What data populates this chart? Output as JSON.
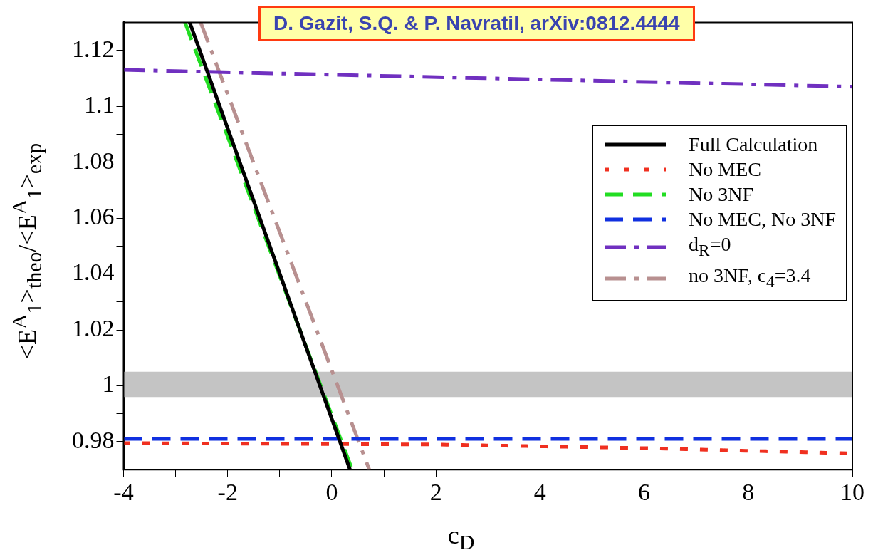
{
  "chart_data": {
    "type": "line",
    "xlabel": "c$_{D}$",
    "ylabel": "<E$^{A}$$_{1}$>$_{theo}$/<E$^{A}$$_{1}$>$_{exp}$",
    "annotations": [
      "D. Gazit, S.Q. & P. Navratil, arXiv:0812.4444"
    ],
    "xlim": [
      -4,
      10
    ],
    "xticks": [
      -4,
      {
        "value": -3,
        "label": null
      },
      -2,
      {
        "value": -1,
        "label": null
      },
      0,
      {
        "value": 1,
        "label": null
      },
      2,
      {
        "value": 3,
        "label": null
      },
      4,
      {
        "value": 5,
        "label": null
      },
      6,
      {
        "value": 7,
        "label": null
      },
      8,
      {
        "value": 9,
        "label": null
      },
      10
    ],
    "ylim": [
      0.97,
      1.13
    ],
    "yticks": [
      0.98,
      {
        "value": 0.99,
        "label": null
      },
      1,
      {
        "value": 1.01,
        "label": null
      },
      1.02,
      {
        "value": 1.03,
        "label": null
      },
      1.04,
      {
        "value": 1.05,
        "label": null
      },
      1.06,
      {
        "value": 1.07,
        "label": null
      },
      1.08,
      {
        "value": 1.09,
        "label": null
      },
      1.1,
      {
        "value": 1.11,
        "label": null
      },
      1.12
    ],
    "grid": false,
    "legend": "right",
    "marker": "none",
    "bands": [
      {
        "axis": "y",
        "from": 0.996,
        "to": 1.005,
        "color": "#c4c4c4"
      }
    ],
    "series": [
      {
        "name": "Full Calculation",
        "color": "#000000",
        "line_style": "solid",
        "x": [
          -2.73,
          0.35
        ],
        "values": [
          1.13,
          0.97
        ]
      },
      {
        "name": "No MEC",
        "color": "#f03020",
        "line_style": "dotted",
        "x": [
          -4,
          2,
          6,
          10
        ],
        "values": [
          0.9795,
          0.979,
          0.9777,
          0.9758
        ]
      },
      {
        "name": "No 3NF",
        "color": "#22dd22",
        "line_style": "dashed",
        "x": [
          -2.82,
          0.39
        ],
        "values": [
          1.13,
          0.97
        ]
      },
      {
        "name": "No MEC, No 3NF",
        "color": "#1030e0",
        "line_style": "dashed",
        "x": [
          -4,
          10
        ],
        "values": [
          0.981,
          0.981
        ]
      },
      {
        "name": "d$_{R}$=0",
        "color": "#7030c0",
        "line_style": "dashdot",
        "x": [
          -4,
          10
        ],
        "values": [
          1.113,
          1.107
        ]
      },
      {
        "name": "no 3NF, c$_{4}$=3.4",
        "color": "#b89090",
        "line_style": "dashdot",
        "x": [
          -2.52,
          0.72
        ],
        "values": [
          1.13,
          0.97
        ]
      }
    ]
  }
}
